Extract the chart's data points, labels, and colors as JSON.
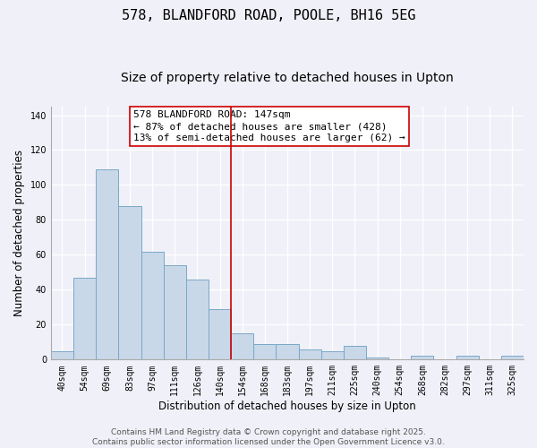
{
  "title": "578, BLANDFORD ROAD, POOLE, BH16 5EG",
  "subtitle": "Size of property relative to detached houses in Upton",
  "xlabel": "Distribution of detached houses by size in Upton",
  "ylabel": "Number of detached properties",
  "bar_labels": [
    "40sqm",
    "54sqm",
    "69sqm",
    "83sqm",
    "97sqm",
    "111sqm",
    "126sqm",
    "140sqm",
    "154sqm",
    "168sqm",
    "183sqm",
    "197sqm",
    "211sqm",
    "225sqm",
    "240sqm",
    "254sqm",
    "268sqm",
    "282sqm",
    "297sqm",
    "311sqm",
    "325sqm"
  ],
  "bar_values": [
    5,
    47,
    109,
    88,
    62,
    54,
    46,
    29,
    15,
    9,
    9,
    6,
    5,
    8,
    1,
    0,
    2,
    0,
    2,
    0,
    2
  ],
  "bar_color": "#c8d8e8",
  "bar_edge_color": "#7aa8c8",
  "ylim": [
    0,
    145
  ],
  "yticks": [
    0,
    20,
    40,
    60,
    80,
    100,
    120,
    140
  ],
  "vline_x": 7.5,
  "vline_color": "#cc0000",
  "annotation_line1": "578 BLANDFORD ROAD: 147sqm",
  "annotation_line2": "← 87% of detached houses are smaller (428)",
  "annotation_line3": "13% of semi-detached houses are larger (62) →",
  "footer_line1": "Contains HM Land Registry data © Crown copyright and database right 2025.",
  "footer_line2": "Contains public sector information licensed under the Open Government Licence v3.0.",
  "bg_color": "#f0f0f8",
  "grid_color": "#ffffff",
  "title_fontsize": 11,
  "subtitle_fontsize": 10,
  "axis_label_fontsize": 8.5,
  "tick_fontsize": 7,
  "annotation_fontsize": 8,
  "footer_fontsize": 6.5
}
